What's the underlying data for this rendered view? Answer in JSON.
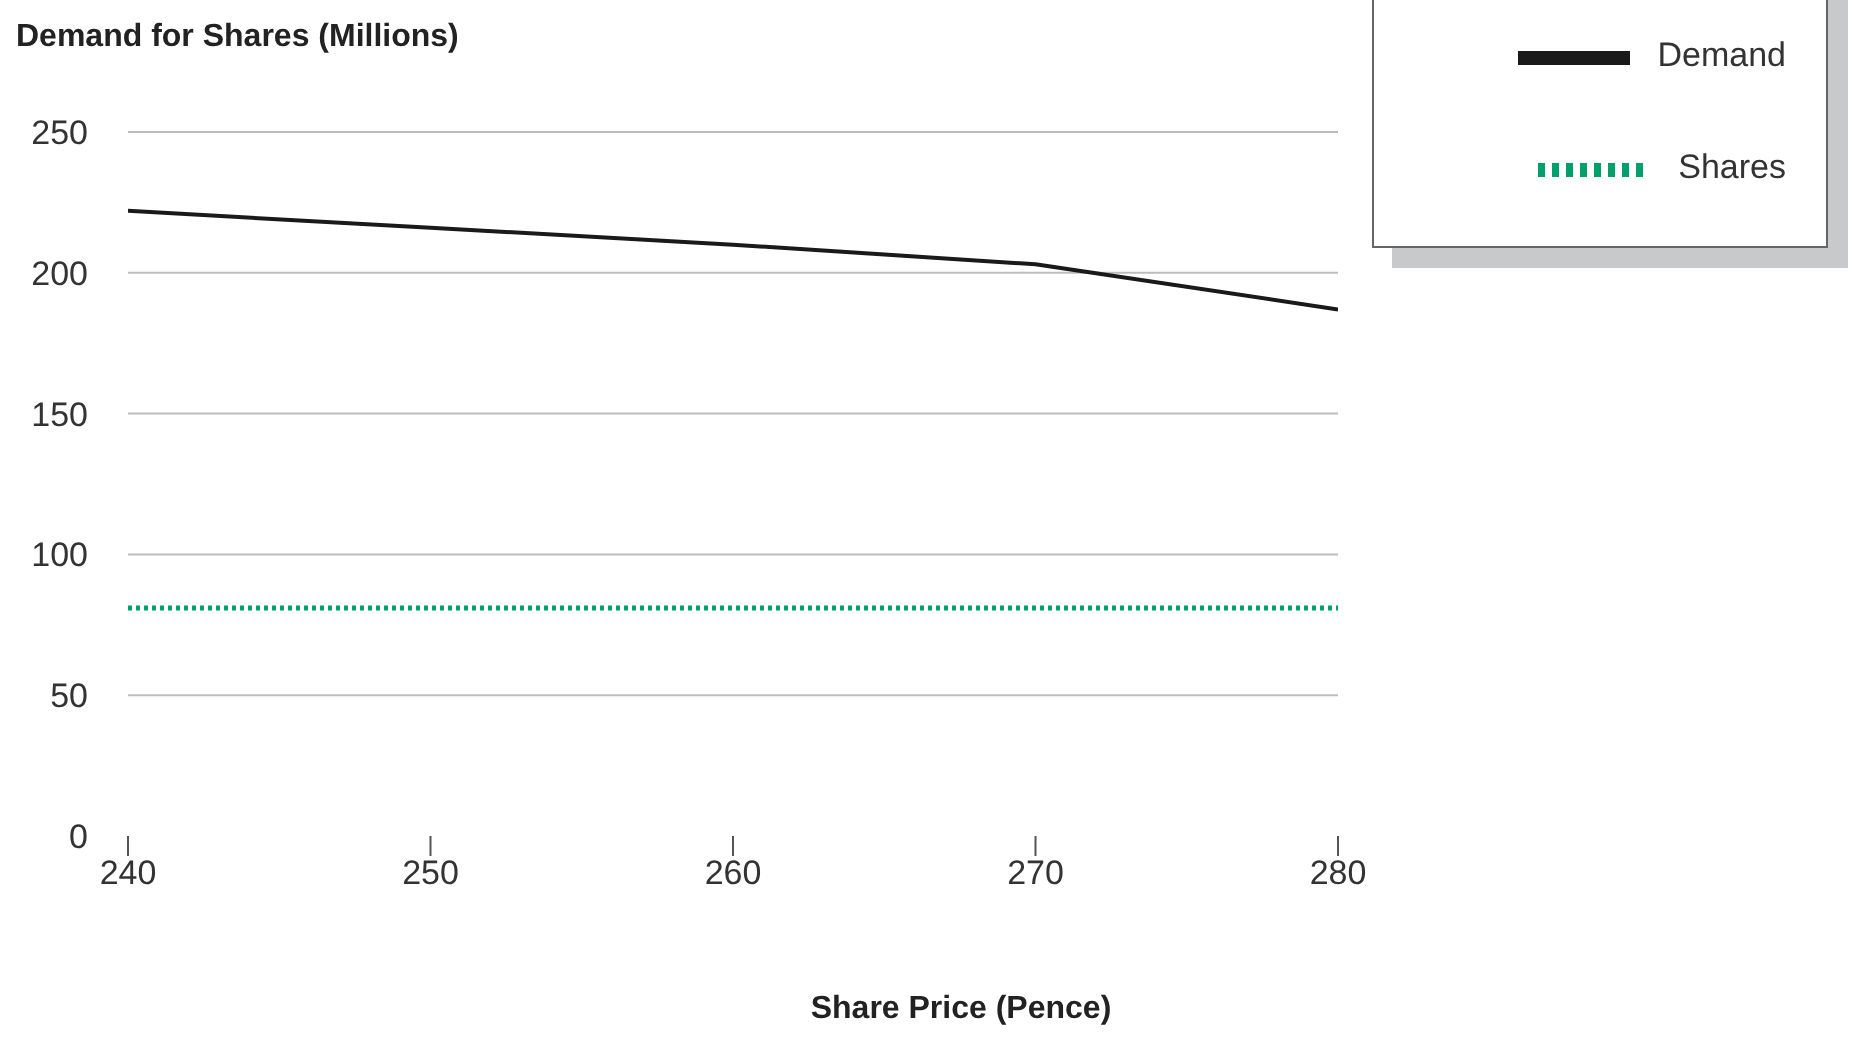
{
  "chart_data": {
    "type": "line",
    "title": "Demand for Shares (Millions)",
    "xlabel": "Share Price (Pence)",
    "x": [
      240,
      250,
      260,
      270,
      280
    ],
    "series": [
      {
        "name": "Demand",
        "color": "#1a1a1a",
        "values": [
          222,
          216,
          210,
          203,
          187
        ],
        "line_style": "solid"
      },
      {
        "name": "Shares",
        "color": "#00a06a",
        "values": [
          81,
          81,
          81,
          81,
          81
        ],
        "line_style": "dotted"
      }
    ],
    "xlim": [
      240,
      280
    ],
    "xticks": [
      240,
      250,
      260,
      270,
      280
    ],
    "ylim": [
      0,
      250
    ],
    "yticks": [
      0,
      50,
      100,
      150,
      200,
      250
    ],
    "grid": "y",
    "legend": "top right",
    "marker": "none"
  }
}
